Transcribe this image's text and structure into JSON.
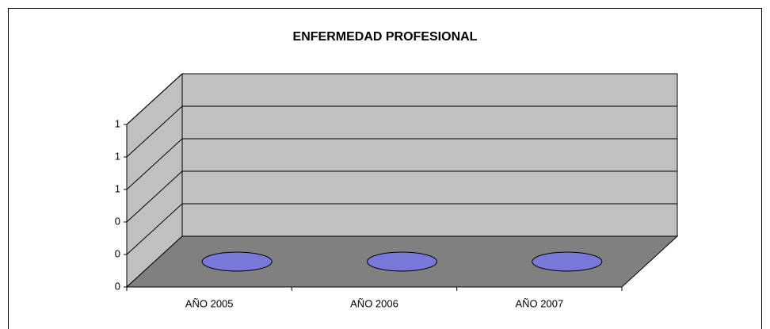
{
  "chart_data": {
    "type": "cylinder3d",
    "title": "ENFERMEDAD PROFESIONAL",
    "categories": [
      "AÑO 2005",
      "AÑO 2006",
      "AÑO 2007"
    ],
    "values": [
      0,
      0,
      0
    ],
    "color": "#7878d8",
    "ylim": [
      0,
      1
    ],
    "yticks": [
      0,
      {
        "value": 0.2,
        "label": "0"
      },
      {
        "value": 0.4,
        "label": "0"
      },
      {
        "value": 0.6,
        "label": "1"
      },
      {
        "value": 0.8,
        "label": "1"
      },
      1
    ],
    "grid": true
  }
}
